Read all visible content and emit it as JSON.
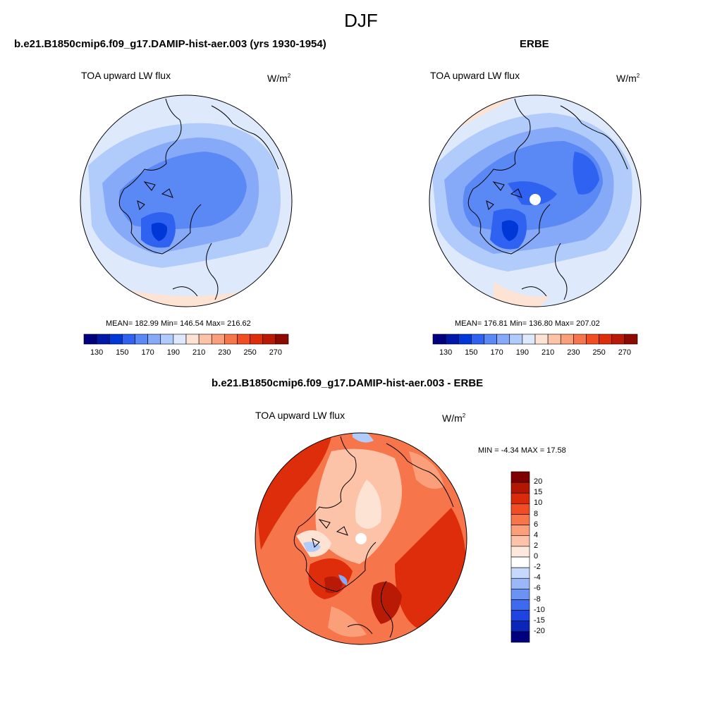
{
  "main_title": "DJF",
  "palette": [
    "#00007f",
    "#0018a8",
    "#0038d8",
    "#2f62f0",
    "#5a88f5",
    "#86a9f8",
    "#b1cbfa",
    "#dfe9fc",
    "#fde3d3",
    "#fcc3a8",
    "#fa9f79",
    "#f7754a",
    "#f24c22",
    "#dd2d0a",
    "#b81a05",
    "#8c0a02"
  ],
  "colors": {
    "ocean_outer": "#dfe9fc",
    "mid_ring": "#b1cbfa",
    "inner": "#86a9f8",
    "core": "#5a88f5",
    "deep": "#2f62f0",
    "warm_edge": "#fde3d3",
    "missing": "#ffffff"
  },
  "panels": [
    {
      "title": "b.e21.B1850cmip6.f09_g17.DAMIP-hist-aer.003 (yrs 1930-1954)",
      "variable": "TOA upward LW flux",
      "units": "W/m",
      "units_sup": "2",
      "stats": "MEAN= 182.99  Min= 146.54  Max= 216.62",
      "colorbar_ticks": [
        "130",
        "150",
        "170",
        "190",
        "210",
        "230",
        "250",
        "270"
      ]
    },
    {
      "title": "ERBE",
      "variable": "TOA upward LW flux",
      "units": "W/m",
      "units_sup": "2",
      "stats": "MEAN= 176.81  Min= 136.80  Max= 207.02",
      "colorbar_ticks": [
        "130",
        "150",
        "170",
        "190",
        "210",
        "230",
        "250",
        "270"
      ]
    },
    {
      "title": "b.e21.B1850cmip6.f09_g17.DAMIP-hist-aer.003 - ERBE",
      "variable": "TOA upward LW flux",
      "units": "W/m",
      "units_sup": "2",
      "stats": "MIN =  -4.34 MAX =  17.58",
      "colorbar_ticks": [
        "20",
        "15",
        "10",
        "8",
        "6",
        "4",
        "2",
        "0",
        "-2",
        "-4",
        "-6",
        "-8",
        "-10",
        "-15",
        "-20"
      ],
      "colorbar_colors": [
        "#7f0000",
        "#b21702",
        "#d92b0a",
        "#f24c22",
        "#f7754a",
        "#fa9f79",
        "#fcc3a8",
        "#fde8dc",
        "#ffffff",
        "#c6d8fb",
        "#9ab7f8",
        "#6a93f3",
        "#3d6aee",
        "#1d44e0",
        "#0a26b8",
        "#00007f"
      ]
    }
  ]
}
